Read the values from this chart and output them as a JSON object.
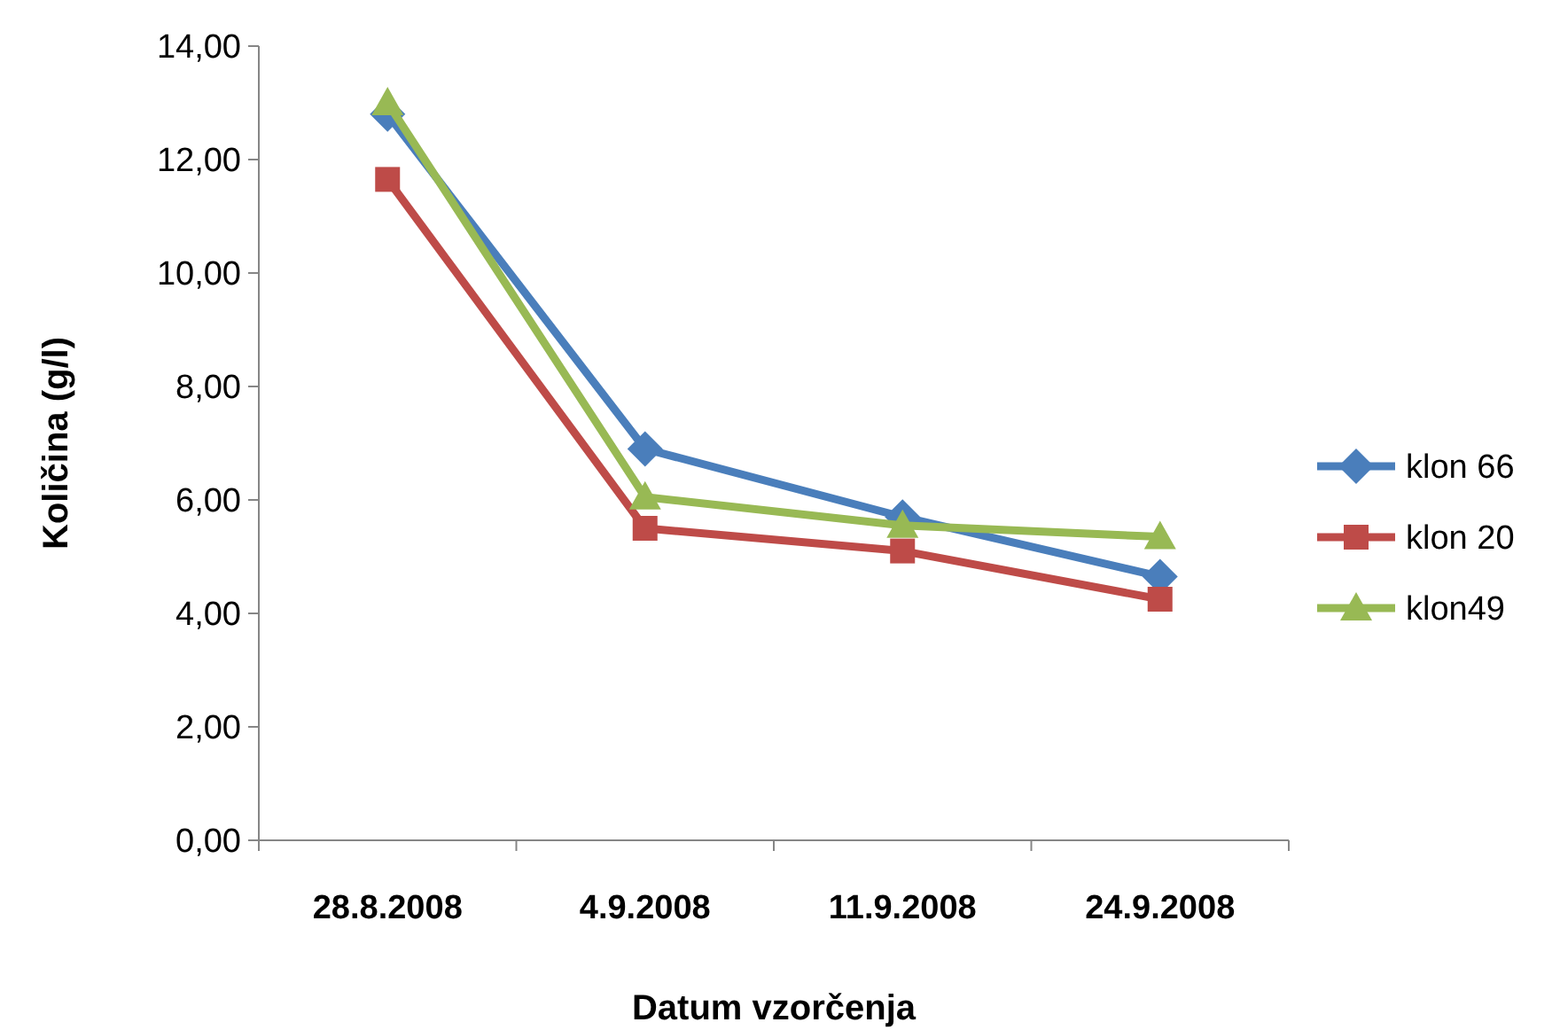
{
  "chart_data": {
    "type": "line",
    "xlabel": "Datum vzorčenja",
    "ylabel": "Količina (g/l)",
    "categories": [
      "28.8.2008",
      "4.9.2008",
      "11.9.2008",
      "24.9.2008"
    ],
    "series": [
      {
        "name": "klon 66",
        "color": "#4a7ebb",
        "marker": "diamond",
        "values": [
          12.8,
          6.9,
          5.7,
          4.65
        ]
      },
      {
        "name": "klon 20",
        "color": "#be4b48",
        "marker": "square",
        "values": [
          11.65,
          5.5,
          5.1,
          4.25
        ]
      },
      {
        "name": "klon49",
        "color": "#98b954",
        "marker": "triangle",
        "values": [
          13.0,
          6.05,
          5.55,
          5.35
        ]
      }
    ],
    "ylim": [
      0,
      14
    ],
    "yticks": [
      {
        "value": 0,
        "label": "0,00"
      },
      {
        "value": 2,
        "label": "2,00"
      },
      {
        "value": 4,
        "label": "4,00"
      },
      {
        "value": 6,
        "label": "6,00"
      },
      {
        "value": 8,
        "label": "8,00"
      },
      {
        "value": 10,
        "label": "10,00"
      },
      {
        "value": 12,
        "label": "12,00"
      },
      {
        "value": 14,
        "label": "14,00"
      }
    ],
    "grid": false,
    "legend": "right",
    "line_style": "solid"
  }
}
